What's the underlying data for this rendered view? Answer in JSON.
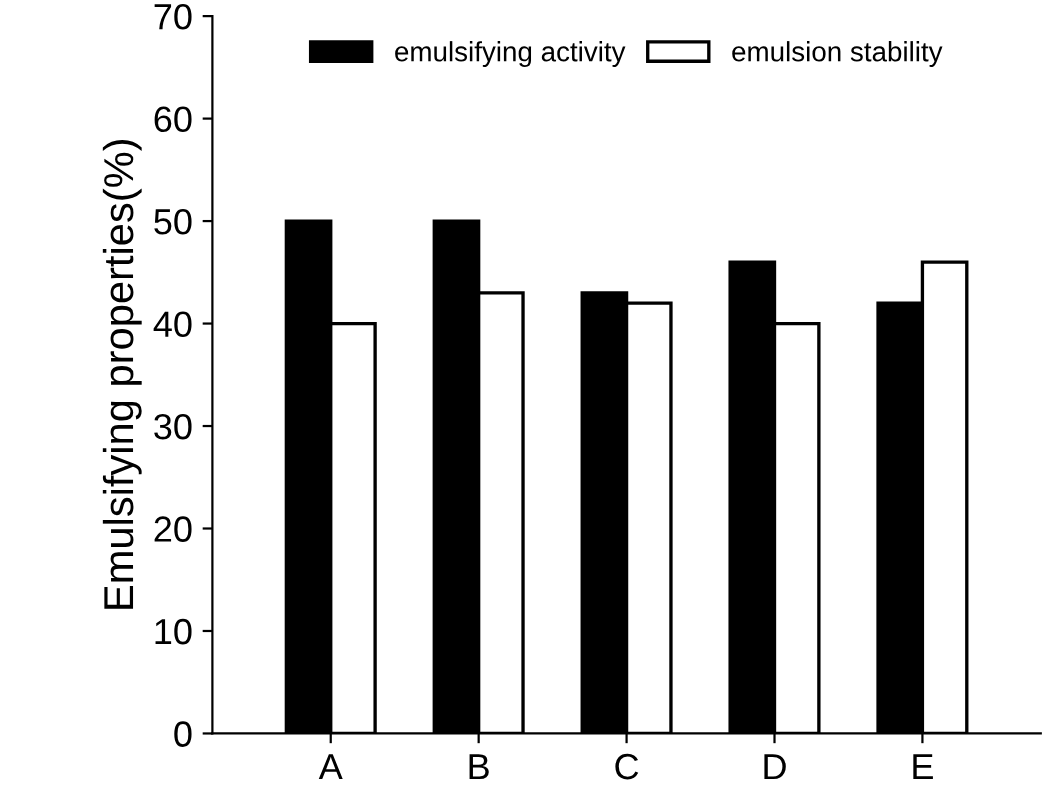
{
  "chart_data": {
    "type": "bar",
    "ylabel": "Emulsifying properties(%)",
    "categories": [
      "A",
      "B",
      "C",
      "D",
      "E"
    ],
    "series": [
      {
        "name": "emulsifying activity",
        "color": "#000000",
        "values": [
          50,
          50,
          43,
          46,
          42
        ]
      },
      {
        "name": "emulsion stability",
        "color": "#ffffff",
        "values": [
          40,
          43,
          42,
          40,
          46
        ]
      }
    ],
    "ylim": [
      0,
      70
    ],
    "yticks": [
      0,
      10,
      20,
      30,
      40,
      50,
      60,
      70
    ],
    "grid": false,
    "legend": "top"
  }
}
